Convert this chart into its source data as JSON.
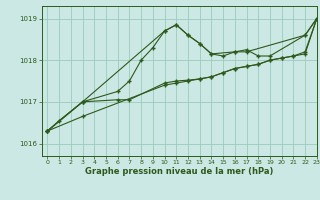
{
  "title": "Graphe pression niveau de la mer (hPa)",
  "bg_color": "#cce8e4",
  "grid_color": "#99ccbb",
  "line_color": "#2d5a1b",
  "xlim": [
    -0.5,
    23
  ],
  "ylim": [
    1015.7,
    1019.3
  ],
  "yticks": [
    1016,
    1017,
    1018,
    1019
  ],
  "xticks": [
    0,
    1,
    2,
    3,
    4,
    5,
    6,
    7,
    8,
    9,
    10,
    11,
    12,
    13,
    14,
    15,
    16,
    17,
    18,
    19,
    20,
    21,
    22,
    23
  ],
  "s0_x": [
    0,
    1,
    3,
    6,
    7,
    8,
    9,
    10,
    11,
    12,
    13,
    14,
    15,
    16,
    17,
    18,
    19,
    22,
    23
  ],
  "s0_y": [
    1016.3,
    1016.55,
    1017.0,
    1017.25,
    1017.5,
    1018.0,
    1018.3,
    1018.7,
    1018.85,
    1018.6,
    1018.4,
    1018.15,
    1018.1,
    1018.2,
    1018.25,
    1018.1,
    1018.1,
    1018.6,
    1019.0
  ],
  "s1_x": [
    0,
    3,
    6,
    7,
    10,
    11,
    12,
    13,
    14,
    15,
    16,
    17,
    18,
    19,
    20,
    21,
    22,
    23
  ],
  "s1_y": [
    1016.3,
    1017.0,
    1017.05,
    1017.05,
    1017.45,
    1017.5,
    1017.52,
    1017.55,
    1017.6,
    1017.7,
    1017.8,
    1017.85,
    1017.9,
    1018.0,
    1018.05,
    1018.1,
    1018.15,
    1019.0
  ],
  "s2_x": [
    0,
    3,
    10,
    11,
    12,
    13,
    14,
    15,
    16,
    17,
    18,
    19,
    20,
    21,
    22,
    23
  ],
  "s2_y": [
    1016.3,
    1016.65,
    1017.4,
    1017.45,
    1017.5,
    1017.55,
    1017.6,
    1017.7,
    1017.8,
    1017.85,
    1017.9,
    1018.0,
    1018.05,
    1018.1,
    1018.2,
    1019.0
  ],
  "s3_x": [
    0,
    3,
    10,
    11,
    12,
    13,
    14,
    16,
    17,
    22,
    23
  ],
  "s3_y": [
    1016.3,
    1017.0,
    1018.7,
    1018.85,
    1018.6,
    1018.4,
    1018.15,
    1018.2,
    1018.2,
    1018.6,
    1019.0
  ]
}
